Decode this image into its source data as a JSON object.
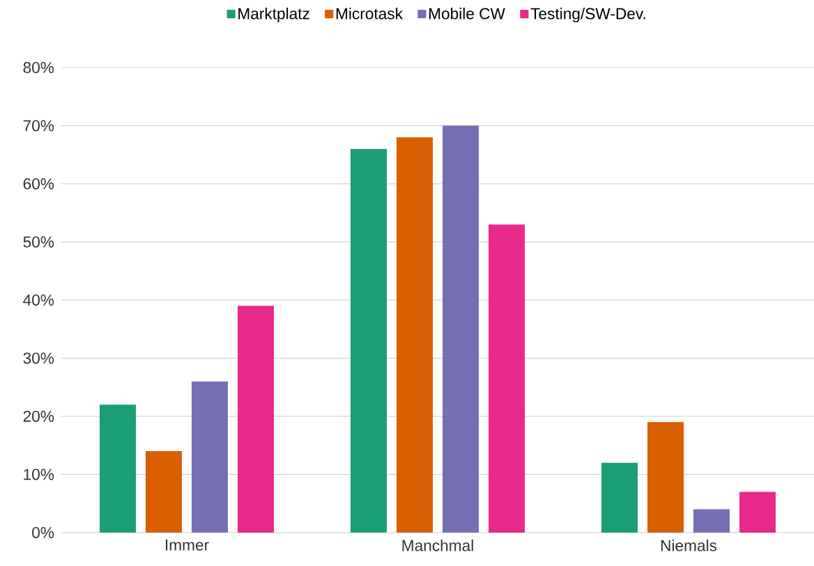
{
  "chart_data": {
    "type": "bar",
    "categories": [
      "Immer",
      "Manchmal",
      "Niemals"
    ],
    "series": [
      {
        "name": "Marktplatz",
        "color": "#1b9e77",
        "values": [
          22,
          66,
          12
        ]
      },
      {
        "name": "Microtask",
        "color": "#d95f02",
        "values": [
          14,
          68,
          19
        ]
      },
      {
        "name": "Mobile CW",
        "color": "#7570b3",
        "values": [
          26,
          70,
          4
        ]
      },
      {
        "name": "Testing/SW-Dev.",
        "color": "#e7298a",
        "values": [
          39,
          53,
          7
        ]
      }
    ],
    "ylim": [
      0,
      80
    ],
    "yticks": [
      {
        "value": 0,
        "label": "0%"
      },
      {
        "value": 10,
        "label": "10%"
      },
      {
        "value": 20,
        "label": "20%"
      },
      {
        "value": 30,
        "label": "30%"
      },
      {
        "value": 40,
        "label": "40%"
      },
      {
        "value": 50,
        "label": "50%"
      },
      {
        "value": 60,
        "label": "60%"
      },
      {
        "value": 70,
        "label": "70%"
      },
      {
        "value": 80,
        "label": "80%"
      }
    ],
    "grid": "y",
    "legend": "top"
  }
}
